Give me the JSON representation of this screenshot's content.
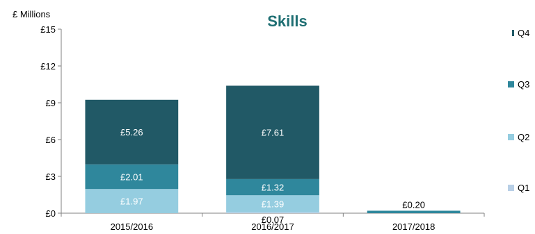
{
  "chart_data": {
    "type": "bar",
    "stacked": true,
    "title": "Skills",
    "ylabel": "£ Millions",
    "xlabel": "",
    "ylim": [
      0,
      15
    ],
    "yticks": [
      0,
      3,
      6,
      9,
      12,
      15
    ],
    "ytick_labels": [
      "£0",
      "£3",
      "£6",
      "£9",
      "£12",
      "£15"
    ],
    "categories": [
      "2015/2016",
      "2016/2017",
      "2017/2018"
    ],
    "series": [
      {
        "name": "Q1",
        "color": "#b8cfe6",
        "values": [
          0,
          0.07,
          0
        ],
        "labels": [
          "",
          "£0.07",
          ""
        ]
      },
      {
        "name": "Q2",
        "color": "#95cde0",
        "values": [
          1.97,
          1.39,
          0
        ],
        "labels": [
          "£1.97",
          "£1.39",
          ""
        ]
      },
      {
        "name": "Q3",
        "color": "#2f879c",
        "values": [
          2.01,
          1.32,
          0.2
        ],
        "labels": [
          "£2.01",
          "£1.32",
          "£0.20"
        ]
      },
      {
        "name": "Q4",
        "color": "#215966",
        "values": [
          5.26,
          7.61,
          0
        ],
        "labels": [
          "£5.26",
          "£7.61",
          ""
        ]
      }
    ],
    "legend_position": "right",
    "grid": false
  }
}
